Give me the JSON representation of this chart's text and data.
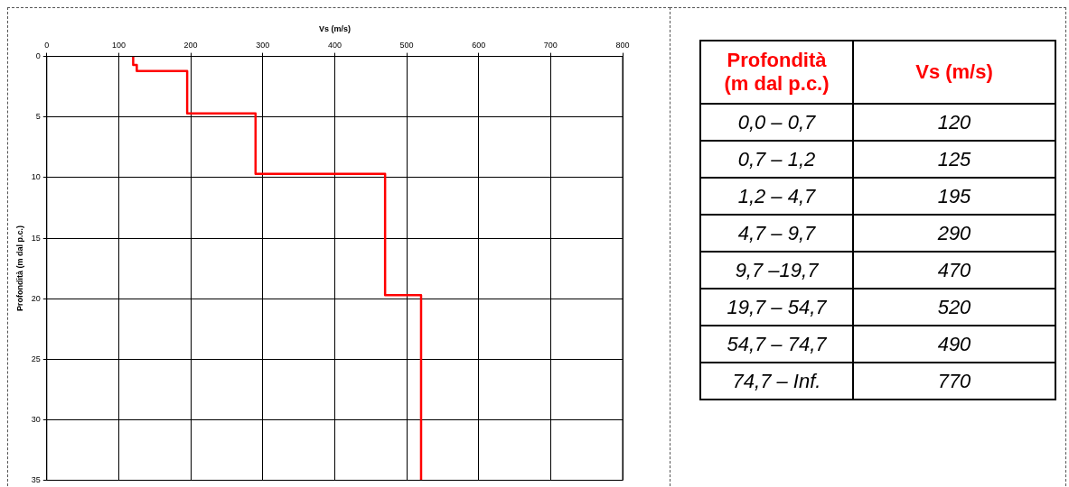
{
  "chart_data": [
    {
      "type": "line",
      "xlabel": "Vs (m/s)",
      "ylabel": "Profondità (m dal p.c.)",
      "xlim": [
        0,
        800
      ],
      "xticks": [
        0,
        100,
        200,
        300,
        400,
        500,
        600,
        700,
        800
      ],
      "ylim": [
        35,
        0
      ],
      "yticks": [
        0,
        5,
        10,
        15,
        20,
        25,
        30,
        35
      ],
      "grid": true,
      "marker": "none",
      "series": [
        {
          "color": "#ff0000",
          "x": [
            120,
            120,
            125,
            125,
            195,
            195,
            290,
            290,
            470,
            470,
            520,
            520
          ],
          "values": [
            0,
            0.7,
            0.7,
            1.2,
            1.2,
            4.7,
            4.7,
            9.7,
            9.7,
            19.7,
            19.7,
            35
          ]
        }
      ]
    },
    {
      "type": "other",
      "annotations": [
        "Profondità\n(m dal p.c.)",
        "Vs (m/s)"
      ],
      "categories": [
        "0,0 – 0,7",
        "0,7 – 1,2",
        "1,2 – 4,7",
        "4,7 – 9,7",
        "9,7 –19,7",
        "19,7 – 54,7",
        "54,7 – 74,7",
        "74,7 – Inf."
      ],
      "values": [
        120,
        125,
        195,
        290,
        470,
        520,
        490,
        770
      ],
      "data_labels": true
    }
  ]
}
